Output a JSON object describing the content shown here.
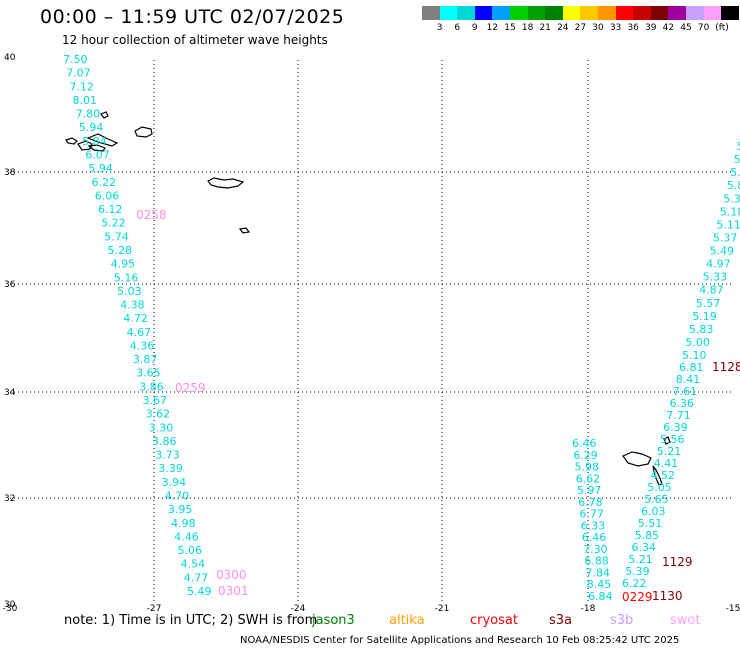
{
  "title": "00:00 – 11:59 UTC 02/07/2025",
  "subtitle": "12 hour collection of altimeter wave heights",
  "legend": {
    "unit": "(ft)",
    "colors": [
      "#808080",
      "#00ffff",
      "#00d8d8",
      "#0000ff",
      "#00a0ff",
      "#00d000",
      "#00a000",
      "#008000",
      "#ffff00",
      "#ffc800",
      "#ff9600",
      "#ff0000",
      "#c80000",
      "#800000",
      "#a000a0",
      "#c8a0ff",
      "#ffa0ff",
      "#000000"
    ],
    "labels": [
      "3",
      "6",
      "9",
      "12",
      "15",
      "18",
      "21",
      "24",
      "27",
      "30",
      "33",
      "36",
      "39",
      "42",
      "45",
      "70"
    ]
  },
  "axes": {
    "lon_ticks": [
      "-30",
      "-27",
      "-24",
      "-21",
      "-18",
      "-15"
    ],
    "lat_ticks": [
      "40",
      "38",
      "36",
      "34",
      "32",
      "30"
    ]
  },
  "tracks": {
    "track1": [
      "7.50",
      "7.07",
      "7.12",
      "8.01",
      "7.80",
      "5.94",
      "5.84",
      "6.07",
      "5.94",
      "6.22",
      "6.06",
      "6.12",
      "5.22",
      "5.74",
      "5.28",
      "4.95",
      "5.16",
      "5.03",
      "4.38",
      "4.72",
      "4.67",
      "4.36",
      "3.87",
      "3.65",
      "3.86",
      "3.67",
      "3.62",
      "3.30",
      "3.86",
      "3.73",
      "3.39",
      "3.94",
      "4.70",
      "3.95",
      "4.98",
      "4.46",
      "5.06",
      "4.54",
      "4.77",
      "5.49"
    ],
    "track2": [
      "6.46",
      "6.29",
      "5.98",
      "6.62",
      "5.97",
      "6.78",
      "6.77",
      "6.33",
      "6.46",
      "7.30",
      "6.88",
      "7.84",
      "8.45",
      "6.84"
    ],
    "track3": [
      "6.81",
      "8.41",
      "7.61",
      "6.36",
      "7.71",
      "6.39",
      "5.56",
      "5.21",
      "4.41",
      "4.52",
      "5.05",
      "5.65",
      "6.03",
      "5.51",
      "5.85",
      "6.34",
      "5.21",
      "5.39",
      "6.22"
    ],
    "track4": [
      "5.",
      "5.",
      "5.",
      "5.8",
      "5.3",
      "5.18",
      "5.11",
      "5.37",
      "5.49",
      "4.97",
      "5.33",
      "4.87",
      "5.57",
      "5.19",
      "5.83",
      "5.00",
      "5.10"
    ]
  },
  "times": [
    {
      "label": "0258",
      "color": "#ff90e0"
    },
    {
      "label": "0259",
      "color": "#ff90e0"
    },
    {
      "label": "0300",
      "color": "#ff90e0"
    },
    {
      "label": "0301",
      "color": "#ff90e0"
    },
    {
      "label": "1128",
      "color": "#800000"
    },
    {
      "label": "1129",
      "color": "#800000"
    },
    {
      "label": "1130",
      "color": "#800000"
    },
    {
      "label": "0229",
      "color": "#ff0000"
    }
  ],
  "note": "note: 1) Time is in UTC; 2) SWH is from",
  "satellites": [
    {
      "name": "jason3",
      "color": "#008000"
    },
    {
      "name": "altika",
      "color": "#ffa000"
    },
    {
      "name": "cryosat",
      "color": "#ff0000"
    },
    {
      "name": "s3a",
      "color": "#800000"
    },
    {
      "name": "s3b",
      "color": "#c8a0ff"
    },
    {
      "name": "swot",
      "color": "#ffa0ff"
    }
  ],
  "footer": "NOAA/NESDIS Center for Satellite Applications and Research    10 Feb 08:25:42 UTC 2025"
}
